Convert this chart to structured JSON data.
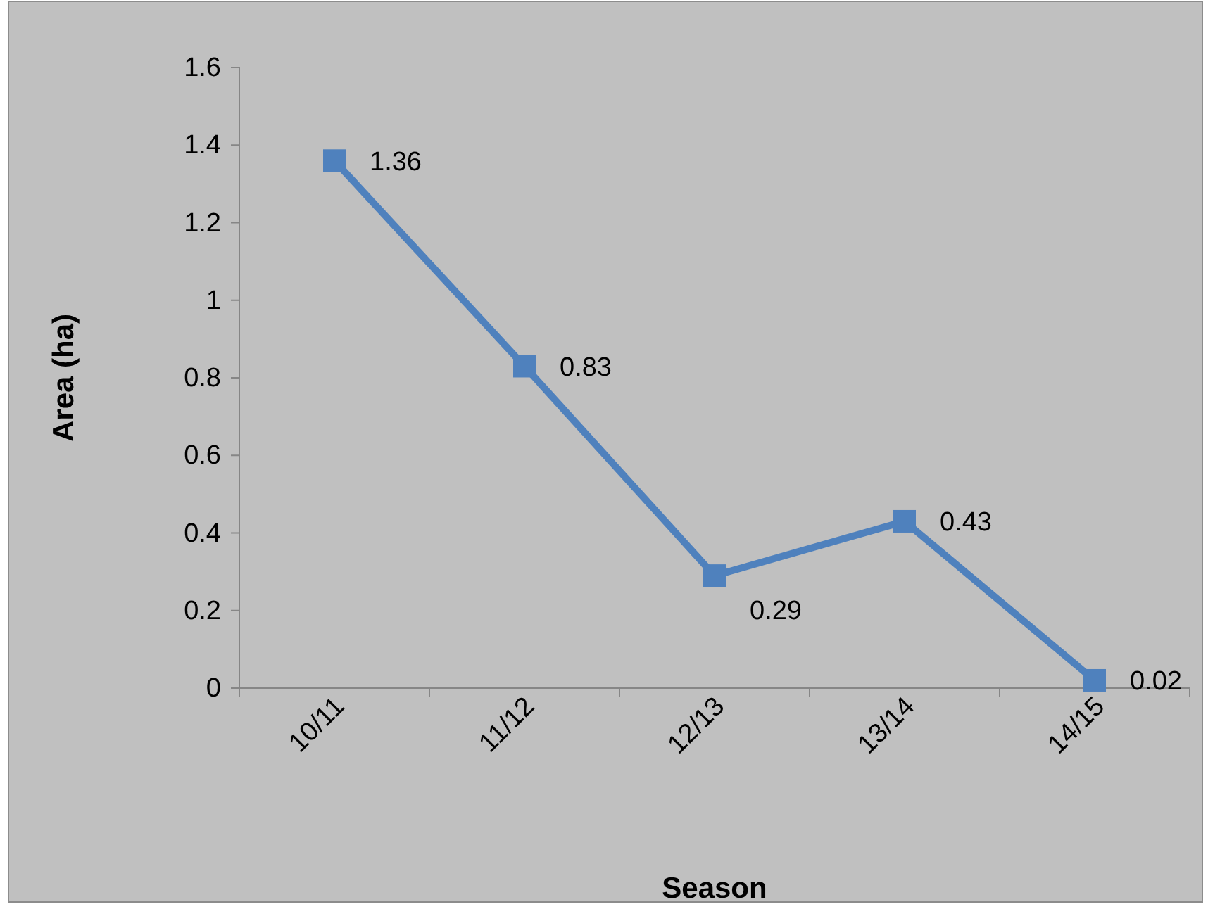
{
  "chart_data": {
    "type": "line",
    "xlabel": "Season",
    "ylabel": "Area (ha)",
    "categories": [
      "10/11",
      "11/12",
      "12/13",
      "13/14",
      "14/15"
    ],
    "series": [
      {
        "color": "#4f81bd",
        "values": [
          1.36,
          0.83,
          0.29,
          0.43,
          0.02
        ]
      }
    ],
    "ylim": [
      0,
      1.6
    ],
    "yticks": [
      0,
      {
        "value": 0.2,
        "label": "0.2"
      },
      {
        "value": 0.4,
        "label": "0.4"
      },
      {
        "value": 0.6,
        "label": "0.6"
      },
      {
        "value": 0.8,
        "label": "0.8"
      },
      1,
      {
        "value": 1.2,
        "label": "1.2"
      },
      {
        "value": 1.4,
        "label": "1.4"
      },
      {
        "value": 1.6,
        "label": "1.6"
      }
    ],
    "data_labels": true,
    "marker": "square",
    "grid": false,
    "legend": false
  }
}
